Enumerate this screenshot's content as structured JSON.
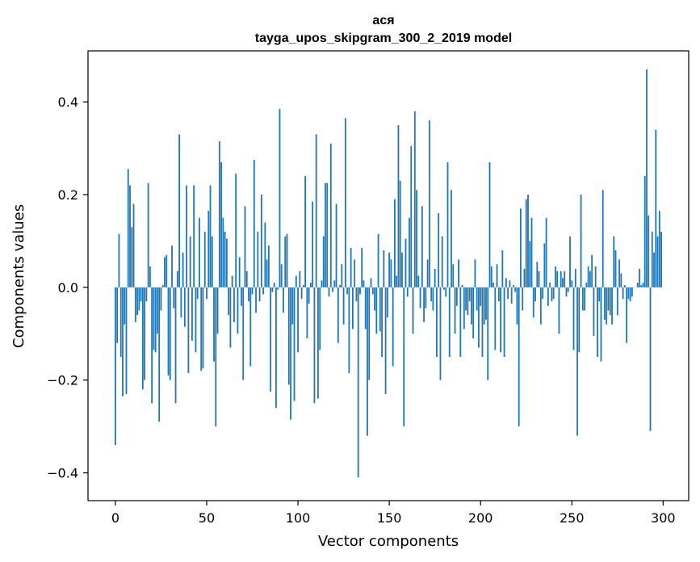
{
  "chart_data": {
    "type": "bar",
    "title_line1": "ася",
    "title_line2": "tayga_upos_skipgram_300_2_2019 model",
    "xlabel": "Vector components",
    "ylabel": "Components values",
    "xlim": [
      -15,
      314
    ],
    "ylim": [
      -0.46,
      0.51
    ],
    "xticks": [
      0,
      50,
      100,
      150,
      200,
      250,
      300
    ],
    "xtick_labels": [
      "0",
      "50",
      "100",
      "150",
      "200",
      "250",
      "300"
    ],
    "yticks": [
      -0.4,
      -0.2,
      0.0,
      0.2,
      0.4
    ],
    "ytick_labels": [
      "−0.4",
      "−0.2",
      "0.0",
      "0.2",
      "0.4"
    ],
    "grid": false,
    "bar_color": "#1f77b4",
    "values": [
      -0.34,
      -0.12,
      0.115,
      -0.15,
      -0.235,
      -0.08,
      -0.23,
      0.255,
      0.22,
      0.13,
      0.18,
      -0.075,
      -0.06,
      -0.05,
      -0.03,
      -0.22,
      -0.2,
      -0.03,
      0.225,
      0.045,
      -0.25,
      -0.135,
      -0.14,
      -0.1,
      -0.29,
      -0.05,
      0.005,
      0.065,
      0.07,
      -0.19,
      -0.2,
      0.09,
      -0.045,
      -0.25,
      0.035,
      0.33,
      -0.065,
      0.075,
      -0.085,
      0.22,
      -0.185,
      0.11,
      -0.115,
      0.22,
      -0.14,
      -0.025,
      0.15,
      -0.18,
      -0.175,
      0.12,
      -0.025,
      0.165,
      0.22,
      0.11,
      -0.16,
      -0.3,
      -0.1,
      0.315,
      0.27,
      0.15,
      0.12,
      0.105,
      -0.06,
      -0.13,
      0.025,
      -0.075,
      0.245,
      -0.1,
      0.065,
      -0.04,
      -0.2,
      0.175,
      0.035,
      -0.03,
      -0.17,
      -0.015,
      0.275,
      -0.055,
      0.12,
      -0.03,
      0.2,
      -0.015,
      0.14,
      0.06,
      0.09,
      -0.225,
      -0.01,
      0.01,
      -0.26,
      -0.005,
      0.385,
      0.05,
      -0.055,
      0.11,
      0.115,
      -0.21,
      -0.285,
      -0.08,
      -0.245,
      0.025,
      -0.14,
      0.035,
      -0.025,
      0.005,
      0.24,
      -0.11,
      -0.035,
      0.01,
      0.185,
      -0.25,
      0.33,
      -0.24,
      -0.135,
      0.015,
      0.11,
      0.225,
      0.225,
      -0.02,
      0.31,
      -0.01,
      0.015,
      0.18,
      -0.12,
      0.005,
      0.05,
      -0.08,
      0.365,
      -0.015,
      -0.185,
      0.085,
      -0.09,
      0.06,
      -0.03,
      -0.41,
      -0.015,
      0.085,
      0.015,
      -0.09,
      -0.32,
      -0.2,
      0.02,
      -0.015,
      -0.05,
      -0.1,
      0.115,
      -0.095,
      -0.15,
      0.08,
      -0.23,
      -0.065,
      0.075,
      0.06,
      -0.17,
      0.19,
      0.025,
      0.35,
      0.23,
      0.075,
      -0.3,
      0.105,
      -0.02,
      0.15,
      0.305,
      -0.1,
      0.38,
      0.21,
      0.025,
      -0.045,
      0.175,
      -0.075,
      -0.045,
      0.06,
      0.36,
      -0.03,
      -0.05,
      0.04,
      -0.15,
      0.16,
      -0.2,
      0.11,
      -0.005,
      -0.02,
      0.27,
      -0.15,
      0.21,
      0.05,
      -0.1,
      -0.04,
      0.06,
      -0.15,
      0.005,
      -0.09,
      -0.05,
      -0.06,
      -0.03,
      -0.08,
      -0.11,
      0.06,
      -0.05,
      -0.13,
      -0.04,
      -0.15,
      -0.08,
      -0.07,
      -0.2,
      0.27,
      0.045,
      0.01,
      -0.135,
      0.05,
      -0.03,
      -0.14,
      0.08,
      -0.15,
      0.02,
      -0.025,
      0.015,
      -0.035,
      0.005,
      -0.01,
      -0.08,
      -0.3,
      0.17,
      -0.05,
      0.04,
      0.19,
      0.2,
      0.1,
      0.15,
      -0.065,
      -0.03,
      0.055,
      0.035,
      -0.08,
      -0.025,
      0.095,
      0.15,
      -0.04,
      0.01,
      -0.03,
      -0.025,
      0.045,
      0.035,
      -0.1,
      0.035,
      0.02,
      0.035,
      -0.02,
      -0.01,
      0.11,
      0.015,
      -0.135,
      0.04,
      -0.32,
      -0.14,
      0.2,
      -0.05,
      -0.05,
      0.01,
      0.045,
      0.035,
      0.07,
      -0.105,
      0.045,
      -0.15,
      -0.03,
      -0.16,
      0.21,
      -0.07,
      -0.08,
      -0.05,
      -0.06,
      -0.08,
      0.11,
      0.08,
      -0.06,
      0.06,
      0.03,
      -0.025,
      0.005,
      -0.12,
      -0.025,
      -0.03,
      -0.02,
      0.0,
      0.0,
      0.01,
      0.04,
      0.005,
      0.01,
      0.24,
      0.47,
      0.155,
      -0.31,
      0.12,
      0.075,
      0.34,
      0.11,
      0.165,
      0.12
    ]
  }
}
